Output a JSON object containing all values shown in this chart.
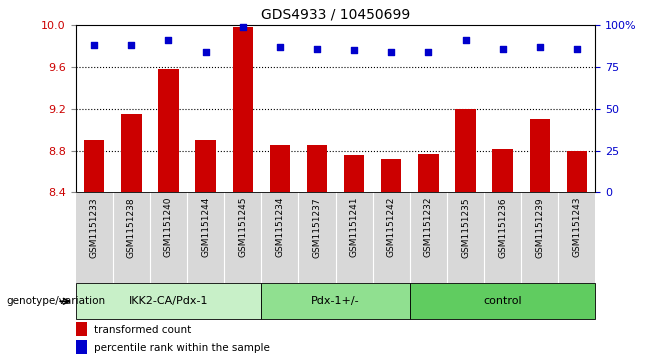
{
  "title": "GDS4933 / 10450699",
  "samples": [
    "GSM1151233",
    "GSM1151238",
    "GSM1151240",
    "GSM1151244",
    "GSM1151245",
    "GSM1151234",
    "GSM1151237",
    "GSM1151241",
    "GSM1151242",
    "GSM1151232",
    "GSM1151235",
    "GSM1151236",
    "GSM1151239",
    "GSM1151243"
  ],
  "bar_values": [
    8.9,
    9.15,
    9.58,
    8.9,
    9.98,
    8.85,
    8.85,
    8.76,
    8.72,
    8.77,
    9.2,
    8.82,
    9.1,
    8.8
  ],
  "percentile_values": [
    88,
    88,
    91,
    84,
    99,
    87,
    86,
    85,
    84,
    84,
    91,
    86,
    87,
    86
  ],
  "groups": [
    {
      "label": "IKK2-CA/Pdx-1",
      "start": 0,
      "end": 5,
      "color": "#c8f0c8"
    },
    {
      "label": "Pdx-1+/-",
      "start": 5,
      "end": 9,
      "color": "#90e090"
    },
    {
      "label": "control",
      "start": 9,
      "end": 14,
      "color": "#60cc60"
    }
  ],
  "bar_color": "#cc0000",
  "dot_color": "#0000cc",
  "ylim_left": [
    8.4,
    10.0
  ],
  "ylim_right": [
    0,
    100
  ],
  "yticks_left": [
    8.4,
    8.8,
    9.2,
    9.6,
    10.0
  ],
  "yticks_right": [
    0,
    25,
    50,
    75,
    100
  ],
  "dotted_lines": [
    8.8,
    9.2,
    9.6
  ],
  "legend_label_bar": "transformed count",
  "legend_label_dot": "percentile rank within the sample",
  "group_label": "genotype/variation",
  "bg_color_tick": "#d8d8d8",
  "title_fontsize": 10,
  "axis_label_color_left": "#cc0000",
  "axis_label_color_right": "#0000cc"
}
